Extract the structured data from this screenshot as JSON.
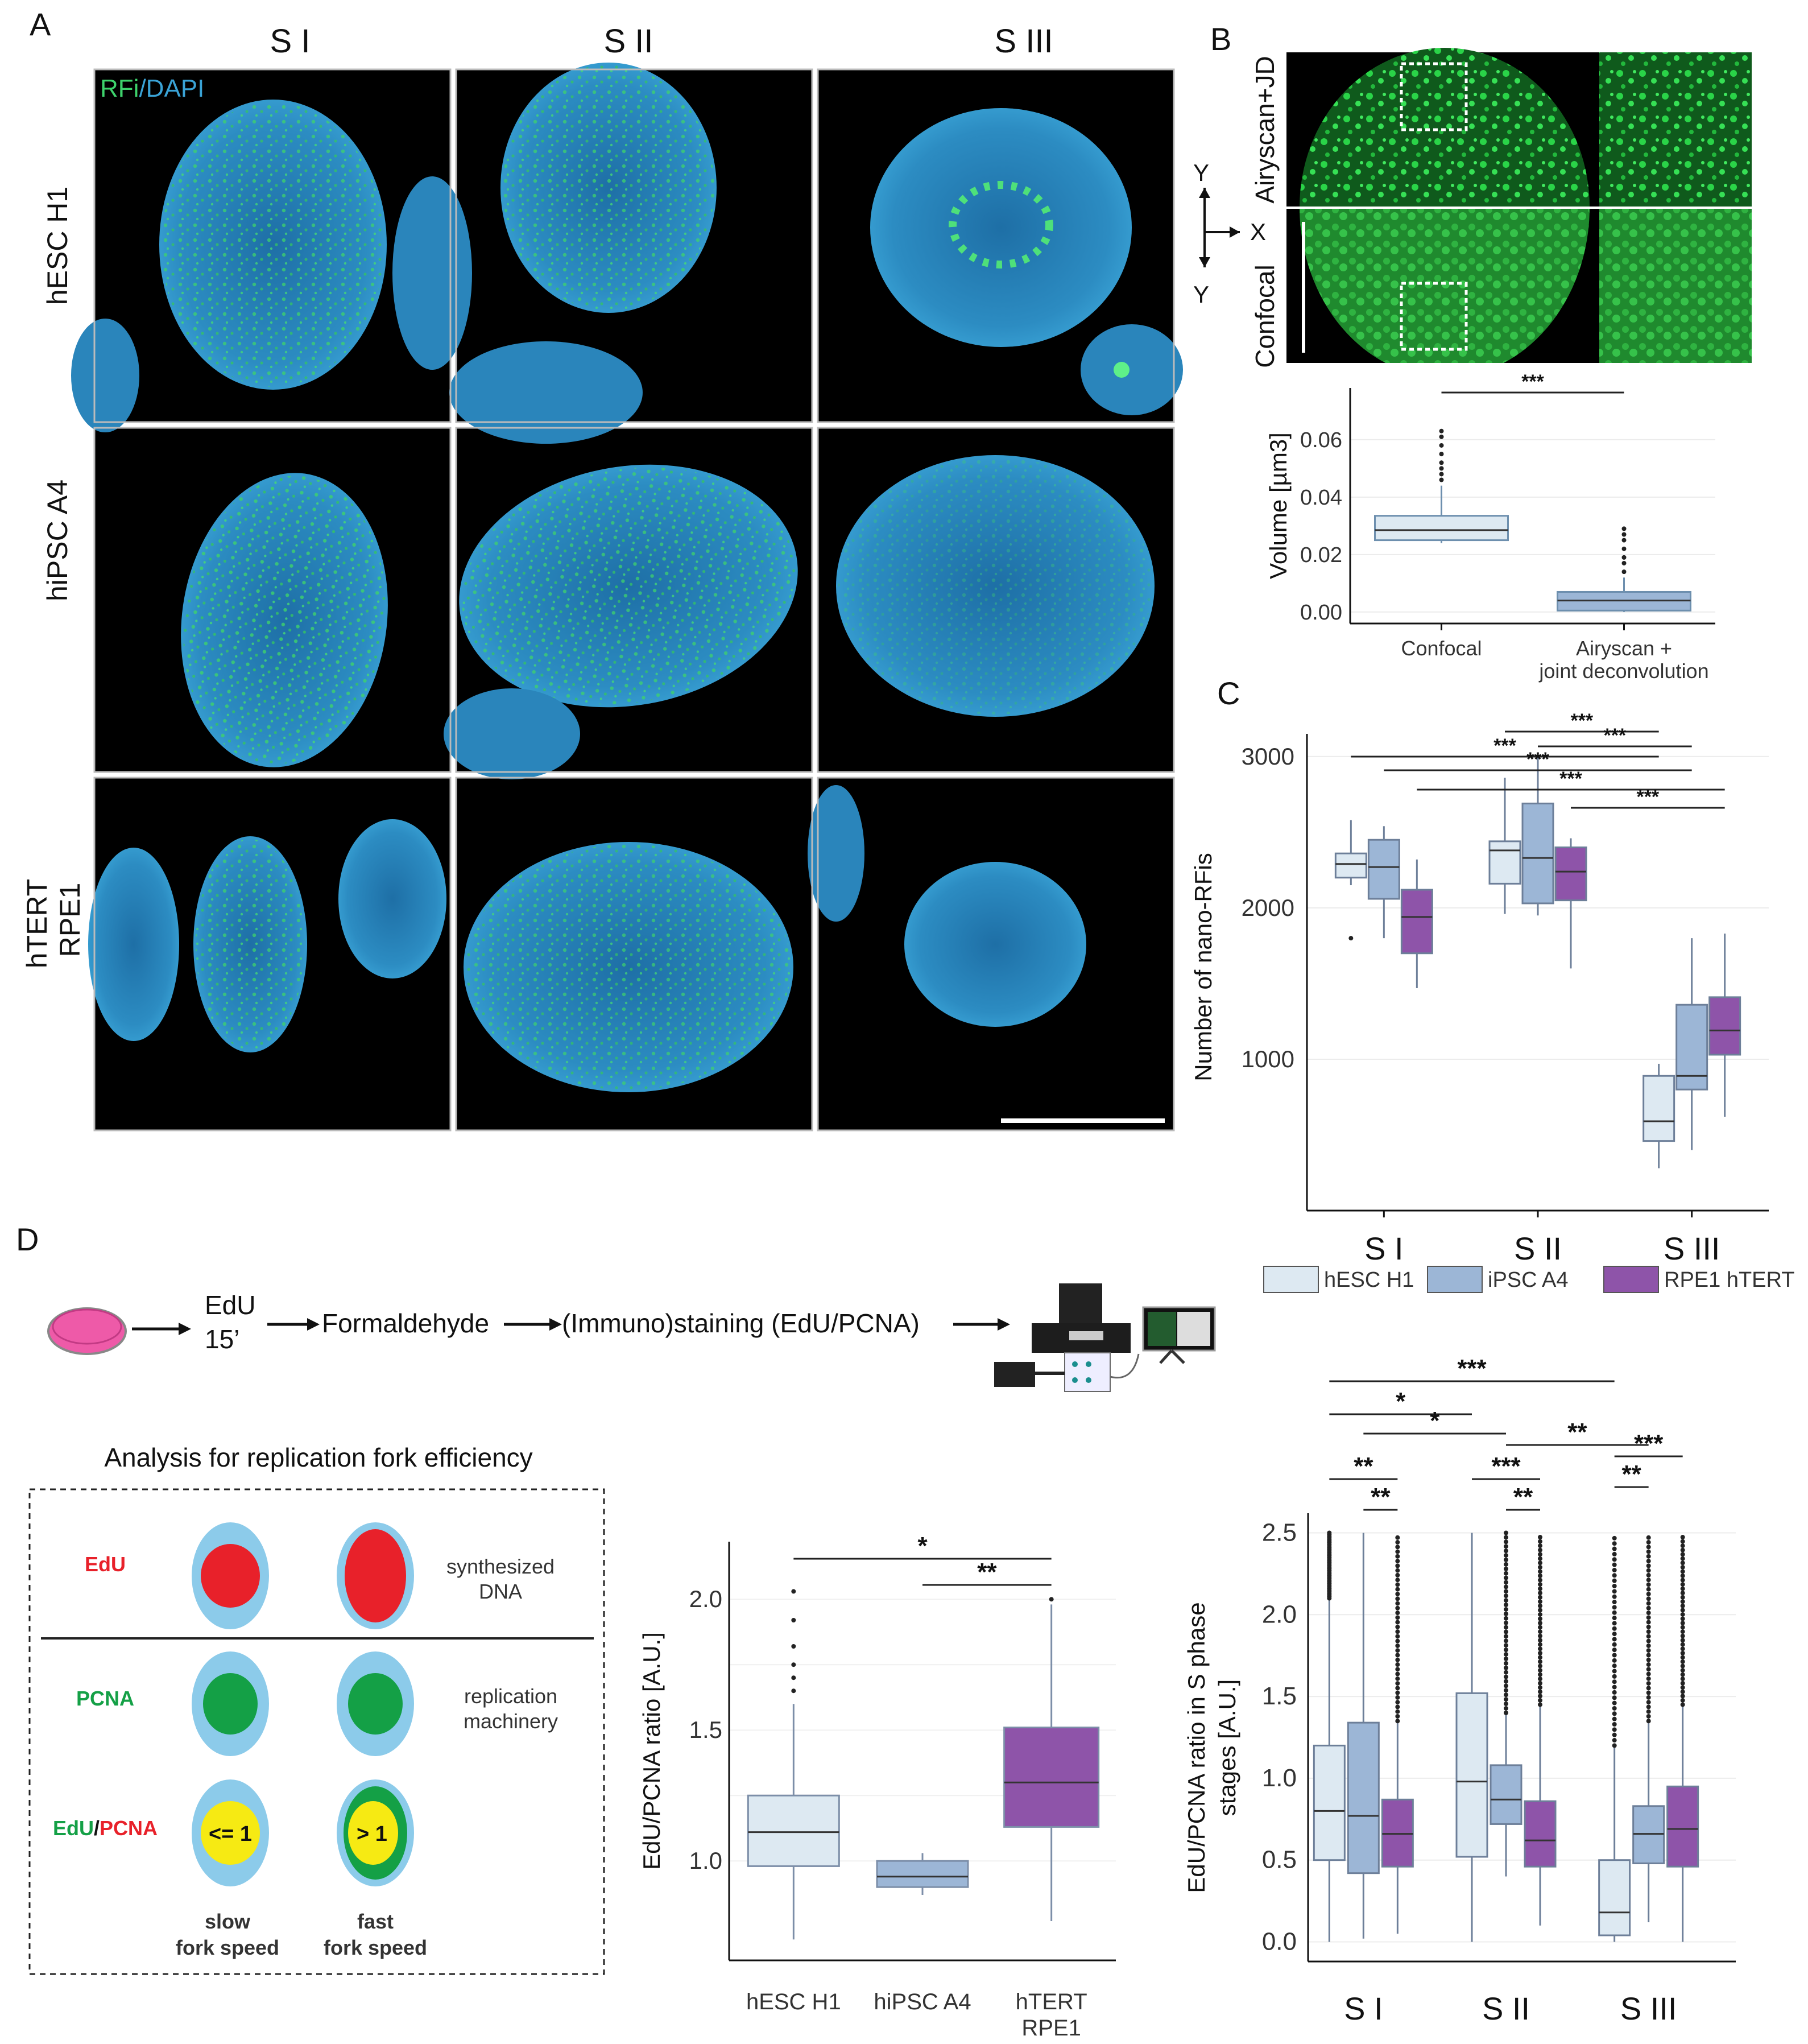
{
  "panel_a": {
    "letter": "A",
    "columns": [
      "S I",
      "S II",
      "S III"
    ],
    "rows": [
      "hESC H1",
      "hiPSC A4",
      "hTERT RPE1"
    ],
    "stain_label_1": "RFi",
    "stain_sep": "/",
    "stain_label_2": "DAPI"
  },
  "panel_b": {
    "letter": "B",
    "image_labels": [
      "Airyscan+JD",
      "Confocal"
    ],
    "axes": {
      "y": "Y",
      "x": "X",
      "y2": "Y"
    },
    "significance": "***"
  },
  "panel_c": {
    "letter": "C"
  },
  "panel_d": {
    "letter": "D",
    "workflow": {
      "step1_line1": "EdU",
      "step1_line2": "15’",
      "step2": "Formaldehyde",
      "step3": "(Immuno)staining (EdU/PCNA)"
    },
    "schema": {
      "title": "Analysis for replication fork efficiency",
      "edu": "EdU",
      "synth_1": "synthesized",
      "synth_2": "DNA",
      "pcna": "PCNA",
      "repl_1": "replication",
      "repl_2": "machinery",
      "ratio_a": "EdU",
      "ratio_sep": "/",
      "ratio_b": "PCNA",
      "le1": "<= 1",
      "gt1": "> 1",
      "slow_1": "slow",
      "slow_2": "fork speed",
      "fast_1": "fast",
      "fast_2": "fork speed"
    }
  },
  "colors": {
    "hESC": "#dde9f2",
    "iPSC": "#9cb6d6",
    "RPE1": "#8e54a9",
    "nucleus": "#2a8bc4",
    "rfi": "#39d36a",
    "edu_red": "#e8212a",
    "pcna_green": "#14a046",
    "cell_blue": "#8ccbea",
    "yellow": "#f6ea13"
  },
  "chart_data": [
    {
      "id": "B",
      "type": "box",
      "ylabel": "Volume [µm3]",
      "categories": [
        "Confocal",
        "Airyscan + joint deconvolution"
      ],
      "category_lines": [
        [
          "Confocal"
        ],
        [
          "Airyscan +",
          "joint deconvolution"
        ]
      ],
      "yticks": [
        0.0,
        0.02,
        0.04,
        0.06
      ],
      "ytick_labels": [
        "0.00",
        "0.02",
        "0.04",
        "0.06"
      ],
      "ylim": [
        -0.004,
        0.078
      ],
      "boxes": [
        {
          "category": "Confocal",
          "whisker_low": 0.024,
          "q1": 0.025,
          "median": 0.0285,
          "q3": 0.0335,
          "whisker_high": 0.044,
          "outliers": [
            0.046,
            0.048,
            0.05,
            0.052,
            0.055,
            0.058,
            0.061,
            0.063
          ]
        },
        {
          "category": "Airyscan + joint deconvolution",
          "whisker_low": 0.0,
          "q1": 0.0005,
          "median": 0.004,
          "q3": 0.007,
          "whisker_high": 0.012,
          "outliers": [
            0.014,
            0.017,
            0.019,
            0.022,
            0.025,
            0.027,
            0.029
          ]
        }
      ],
      "significance": [
        {
          "from": 0,
          "to": 1,
          "label": "***"
        }
      ]
    },
    {
      "id": "C",
      "type": "box",
      "ylabel": "Number of nano-RFis",
      "categories": [
        "S I",
        "S II",
        "S III"
      ],
      "series": [
        "hESC H1",
        "iPSC A4",
        "RPE1 hTERT"
      ],
      "legend_labels": [
        "hESC H1",
        "iPSC A4",
        "RPE1 hTERT"
      ],
      "yticks": [
        1000,
        2000,
        3000
      ],
      "ytick_labels": [
        "1000",
        "2000",
        "3000"
      ],
      "ylim": [
        0,
        3150
      ],
      "boxes": [
        {
          "category": "S I",
          "series": "hESC H1",
          "whisker_low": 2150,
          "q1": 2200,
          "median": 2290,
          "q3": 2360,
          "whisker_high": 2580,
          "outliers": [
            1800
          ]
        },
        {
          "category": "S I",
          "series": "iPSC A4",
          "whisker_low": 1800,
          "q1": 2060,
          "median": 2270,
          "q3": 2450,
          "whisker_high": 2540,
          "outliers": []
        },
        {
          "category": "S I",
          "series": "RPE1 hTERT",
          "whisker_low": 1470,
          "q1": 1700,
          "median": 1940,
          "q3": 2120,
          "whisker_high": 2320,
          "outliers": []
        },
        {
          "category": "S II",
          "series": "hESC H1",
          "whisker_low": 1960,
          "q1": 2160,
          "median": 2380,
          "q3": 2440,
          "whisker_high": 2860,
          "outliers": []
        },
        {
          "category": "S II",
          "series": "iPSC A4",
          "whisker_low": 1950,
          "q1": 2030,
          "median": 2330,
          "q3": 2690,
          "whisker_high": 3000,
          "outliers": []
        },
        {
          "category": "S II",
          "series": "RPE1 hTERT",
          "whisker_low": 1600,
          "q1": 2050,
          "median": 2240,
          "q3": 2400,
          "whisker_high": 2460,
          "outliers": []
        },
        {
          "category": "S III",
          "series": "hESC H1",
          "whisker_low": 280,
          "q1": 460,
          "median": 590,
          "q3": 890,
          "whisker_high": 970,
          "outliers": []
        },
        {
          "category": "S III",
          "series": "iPSC A4",
          "whisker_low": 400,
          "q1": 800,
          "median": 890,
          "q3": 1360,
          "whisker_high": 1800,
          "outliers": []
        },
        {
          "category": "S III",
          "series": "RPE1 hTERT",
          "whisker_low": 620,
          "q1": 1030,
          "median": 1190,
          "q3": 1410,
          "whisker_high": 1830,
          "outliers": []
        }
      ],
      "significance": [
        {
          "label": "***",
          "from": [
            "S II",
            "hESC H1"
          ],
          "to": [
            "S III",
            "hESC H1"
          ]
        },
        {
          "label": "***",
          "from": [
            "S II",
            "iPSC A4"
          ],
          "to": [
            "S III",
            "iPSC A4"
          ]
        },
        {
          "label": "***",
          "from": [
            "S I",
            "hESC H1"
          ],
          "to": [
            "S III",
            "hESC H1"
          ]
        },
        {
          "label": "***",
          "from": [
            "S I",
            "iPSC A4"
          ],
          "to": [
            "S III",
            "iPSC A4"
          ]
        },
        {
          "label": "***",
          "from": [
            "S I",
            "RPE1 hTERT"
          ],
          "to": [
            "S III",
            "RPE1 hTERT"
          ]
        },
        {
          "label": "***",
          "from": [
            "S II",
            "RPE1 hTERT"
          ],
          "to": [
            "S III",
            "RPE1 hTERT"
          ]
        }
      ]
    },
    {
      "id": "D-middle",
      "type": "box",
      "ylabel": "EdU/PCNA ratio [A.U.]",
      "categories": [
        "hESC H1",
        "hiPSC A4",
        "hTERT RPE1"
      ],
      "category_lines": [
        [
          "hESC H1"
        ],
        [
          "hiPSC A4"
        ],
        [
          "hTERT",
          "RPE1"
        ]
      ],
      "yticks": [
        1.0,
        1.5,
        2.0
      ],
      "ytick_labels": [
        "1.0",
        "1.5",
        "2.0"
      ],
      "ylim": [
        0.62,
        2.22
      ],
      "boxes": [
        {
          "category": "hESC H1",
          "whisker_low": 0.7,
          "q1": 0.98,
          "median": 1.11,
          "q3": 1.25,
          "whisker_high": 1.6,
          "outliers": [
            1.65,
            1.7,
            1.75,
            1.82,
            1.92,
            2.03
          ]
        },
        {
          "category": "hiPSC A4",
          "whisker_low": 0.87,
          "q1": 0.9,
          "median": 0.94,
          "q3": 1.0,
          "whisker_high": 1.03,
          "outliers": []
        },
        {
          "category": "hTERT RPE1",
          "whisker_low": 0.77,
          "q1": 1.13,
          "median": 1.3,
          "q3": 1.51,
          "whisker_high": 1.98,
          "outliers": [
            2.0
          ]
        }
      ],
      "significance": [
        {
          "from": 0,
          "to": 2,
          "label": "*"
        },
        {
          "from": 1,
          "to": 2,
          "label": "**"
        }
      ]
    },
    {
      "id": "D-right",
      "type": "box",
      "ylabel": "EdU/PCNA ratio in S phase stages [A.U.]",
      "ylabel_lines": [
        "EdU/PCNA ratio in S phase",
        "stages [A.U.]"
      ],
      "categories": [
        "S I",
        "S II",
        "S III"
      ],
      "series": [
        "hESC H1",
        "iPSC A4",
        "RPE1 hTERT"
      ],
      "yticks": [
        0.0,
        0.5,
        1.0,
        1.5,
        2.0,
        2.5
      ],
      "ytick_labels": [
        "0.0",
        "0.5",
        "1.0",
        "1.5",
        "2.0",
        "2.5"
      ],
      "ylim": [
        -0.12,
        2.62
      ],
      "boxes": [
        {
          "category": "S I",
          "series": "hESC H1",
          "whisker_low": 0.0,
          "q1": 0.5,
          "median": 0.8,
          "q3": 1.2,
          "whisker_high": 2.1,
          "outliers_range": [
            2.1,
            2.5
          ]
        },
        {
          "category": "S I",
          "series": "iPSC A4",
          "whisker_low": 0.02,
          "q1": 0.42,
          "median": 0.77,
          "q3": 1.34,
          "whisker_high": 2.5,
          "outliers_range": null
        },
        {
          "category": "S I",
          "series": "RPE1 hTERT",
          "whisker_low": 0.05,
          "q1": 0.46,
          "median": 0.66,
          "q3": 0.87,
          "whisker_high": 1.35,
          "outliers_range": [
            1.35,
            2.5
          ]
        },
        {
          "category": "S II",
          "series": "hESC H1",
          "whisker_low": 0.0,
          "q1": 0.52,
          "median": 0.98,
          "q3": 1.52,
          "whisker_high": 2.5,
          "outliers_range": null
        },
        {
          "category": "S II",
          "series": "iPSC A4",
          "whisker_low": 0.4,
          "q1": 0.72,
          "median": 0.87,
          "q3": 1.08,
          "whisker_high": 1.4,
          "outliers_range": [
            1.4,
            2.5
          ]
        },
        {
          "category": "S II",
          "series": "RPE1 hTERT",
          "whisker_low": 0.1,
          "q1": 0.46,
          "median": 0.62,
          "q3": 0.86,
          "whisker_high": 1.45,
          "outliers_range": [
            1.45,
            2.5
          ]
        },
        {
          "category": "S III",
          "series": "hESC H1",
          "whisker_low": 0.0,
          "q1": 0.04,
          "median": 0.18,
          "q3": 0.5,
          "whisker_high": 1.2,
          "outliers_range": [
            1.2,
            2.5
          ]
        },
        {
          "category": "S III",
          "series": "iPSC A4",
          "whisker_low": 0.12,
          "q1": 0.48,
          "median": 0.66,
          "q3": 0.83,
          "whisker_high": 1.35,
          "outliers_range": [
            1.35,
            2.5
          ]
        },
        {
          "category": "S III",
          "series": "RPE1 hTERT",
          "whisker_low": 0.0,
          "q1": 0.46,
          "median": 0.69,
          "q3": 0.95,
          "whisker_high": 1.45,
          "outliers_range": [
            1.45,
            2.5
          ]
        }
      ],
      "significance": [
        {
          "label": "***",
          "from": [
            "S I",
            "hESC H1"
          ],
          "to": [
            "S III",
            "hESC H1"
          ]
        },
        {
          "label": "*",
          "from": [
            "S I",
            "hESC H1"
          ],
          "to": [
            "S II",
            "hESC H1"
          ]
        },
        {
          "label": "*",
          "from": [
            "S I",
            "iPSC A4"
          ],
          "to": [
            "S II",
            "iPSC A4"
          ]
        },
        {
          "label": "**",
          "from": [
            "S II",
            "iPSC A4"
          ],
          "to": [
            "S III",
            "iPSC A4"
          ]
        },
        {
          "label": "**",
          "from": [
            "S I",
            "hESC H1"
          ],
          "to": [
            "S I",
            "RPE1 hTERT"
          ]
        },
        {
          "label": "**",
          "from": [
            "S I",
            "iPSC A4"
          ],
          "to": [
            "S I",
            "RPE1 hTERT"
          ]
        },
        {
          "label": "***",
          "from": [
            "S II",
            "hESC H1"
          ],
          "to": [
            "S II",
            "RPE1 hTERT"
          ]
        },
        {
          "label": "**",
          "from": [
            "S II",
            "iPSC A4"
          ],
          "to": [
            "S II",
            "RPE1 hTERT"
          ]
        },
        {
          "label": "***",
          "from": [
            "S III",
            "hESC H1"
          ],
          "to": [
            "S III",
            "RPE1 hTERT"
          ]
        },
        {
          "label": "**",
          "from": [
            "S III",
            "hESC H1"
          ],
          "to": [
            "S III",
            "iPSC A4"
          ]
        }
      ]
    }
  ]
}
